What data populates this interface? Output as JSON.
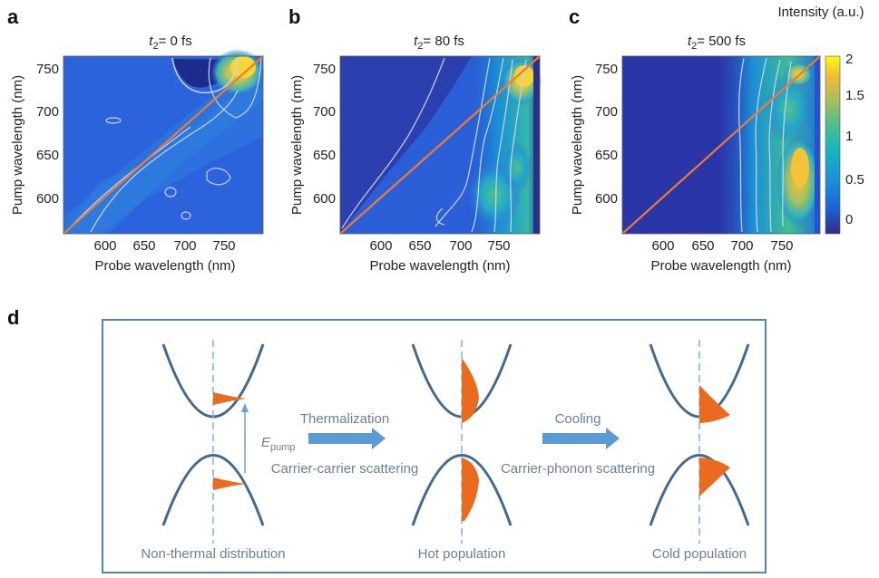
{
  "panels": [
    {
      "letter": "a",
      "t2": "t",
      "t2_sub": "2",
      "title_rest": "= 0 fs"
    },
    {
      "letter": "b",
      "t2": "t",
      "t2_sub": "2",
      "title_rest": "= 80 fs"
    },
    {
      "letter": "c",
      "t2": "t",
      "t2_sub": "2",
      "title_rest": "= 500 fs"
    }
  ],
  "axes": {
    "xlabel": "Probe wavelength (nm)",
    "ylabel": "Pump wavelength (nm)",
    "xticks": [
      "600",
      "650",
      "700",
      "750"
    ],
    "yticks": [
      "600",
      "650",
      "700",
      "750"
    ]
  },
  "colorbar": {
    "title": "Intensity (a.u.)",
    "ticks": [
      "2",
      "1.5",
      "1",
      "0.5",
      "0"
    ]
  },
  "chart_data": [
    {
      "type": "heatmap",
      "title": "t2= 0 fs",
      "xlabel": "Probe wavelength (nm)",
      "ylabel": "Pump wavelength (nm)",
      "xlim": [
        560,
        760
      ],
      "ylim": [
        560,
        760
      ],
      "zlim": [
        -0.3,
        2
      ],
      "diagonal": {
        "from": [
          560,
          560
        ],
        "to": [
          760,
          760
        ],
        "color": "#ee7a36"
      },
      "peaks": [
        {
          "x": 740,
          "y": 740,
          "value": 2.0
        },
        {
          "x": 700,
          "y": 700,
          "value": 0.7
        }
      ]
    },
    {
      "type": "heatmap",
      "title": "t2= 80 fs",
      "xlabel": "Probe wavelength (nm)",
      "ylabel": "Pump wavelength (nm)",
      "xlim": [
        560,
        760
      ],
      "ylim": [
        560,
        760
      ],
      "zlim": [
        -0.3,
        2
      ],
      "diagonal": {
        "from": [
          560,
          560
        ],
        "to": [
          760,
          760
        ],
        "color": "#ee7a36"
      },
      "peaks": [
        {
          "x": 745,
          "y": 740,
          "value": 1.9
        },
        {
          "x": 740,
          "y": 640,
          "value": 1.2
        },
        {
          "x": 730,
          "y": 605,
          "value": 1.0
        }
      ]
    },
    {
      "type": "heatmap",
      "title": "t2= 500 fs",
      "xlabel": "Probe wavelength (nm)",
      "ylabel": "Pump wavelength (nm)",
      "xlim": [
        560,
        760
      ],
      "ylim": [
        560,
        760
      ],
      "zlim": [
        -0.3,
        2
      ],
      "diagonal": {
        "from": [
          560,
          560
        ],
        "to": [
          760,
          760
        ],
        "color": "#ee7a36"
      },
      "peaks": [
        {
          "x": 745,
          "y": 740,
          "value": 1.6
        },
        {
          "x": 748,
          "y": 620,
          "value": 1.9
        },
        {
          "x": 740,
          "y": 680,
          "value": 1.4
        }
      ]
    }
  ],
  "diagram": {
    "letter": "d",
    "label_nonthermal": "Non-thermal distribution",
    "label_hot": "Hot population",
    "label_cold": "Cold population",
    "arrow1_top": "Thermalization",
    "arrow1_bottom": "Carrier-carrier scattering",
    "arrow2_top": "Cooling",
    "arrow2_bottom": "Carrier-phonon scattering",
    "epump_main": "E",
    "epump_sub": "pump",
    "colors": {
      "band": "#44698e",
      "dist": "#ea6a1f",
      "arrow": "#5b9bd5",
      "frame": "#5a83a8"
    }
  }
}
